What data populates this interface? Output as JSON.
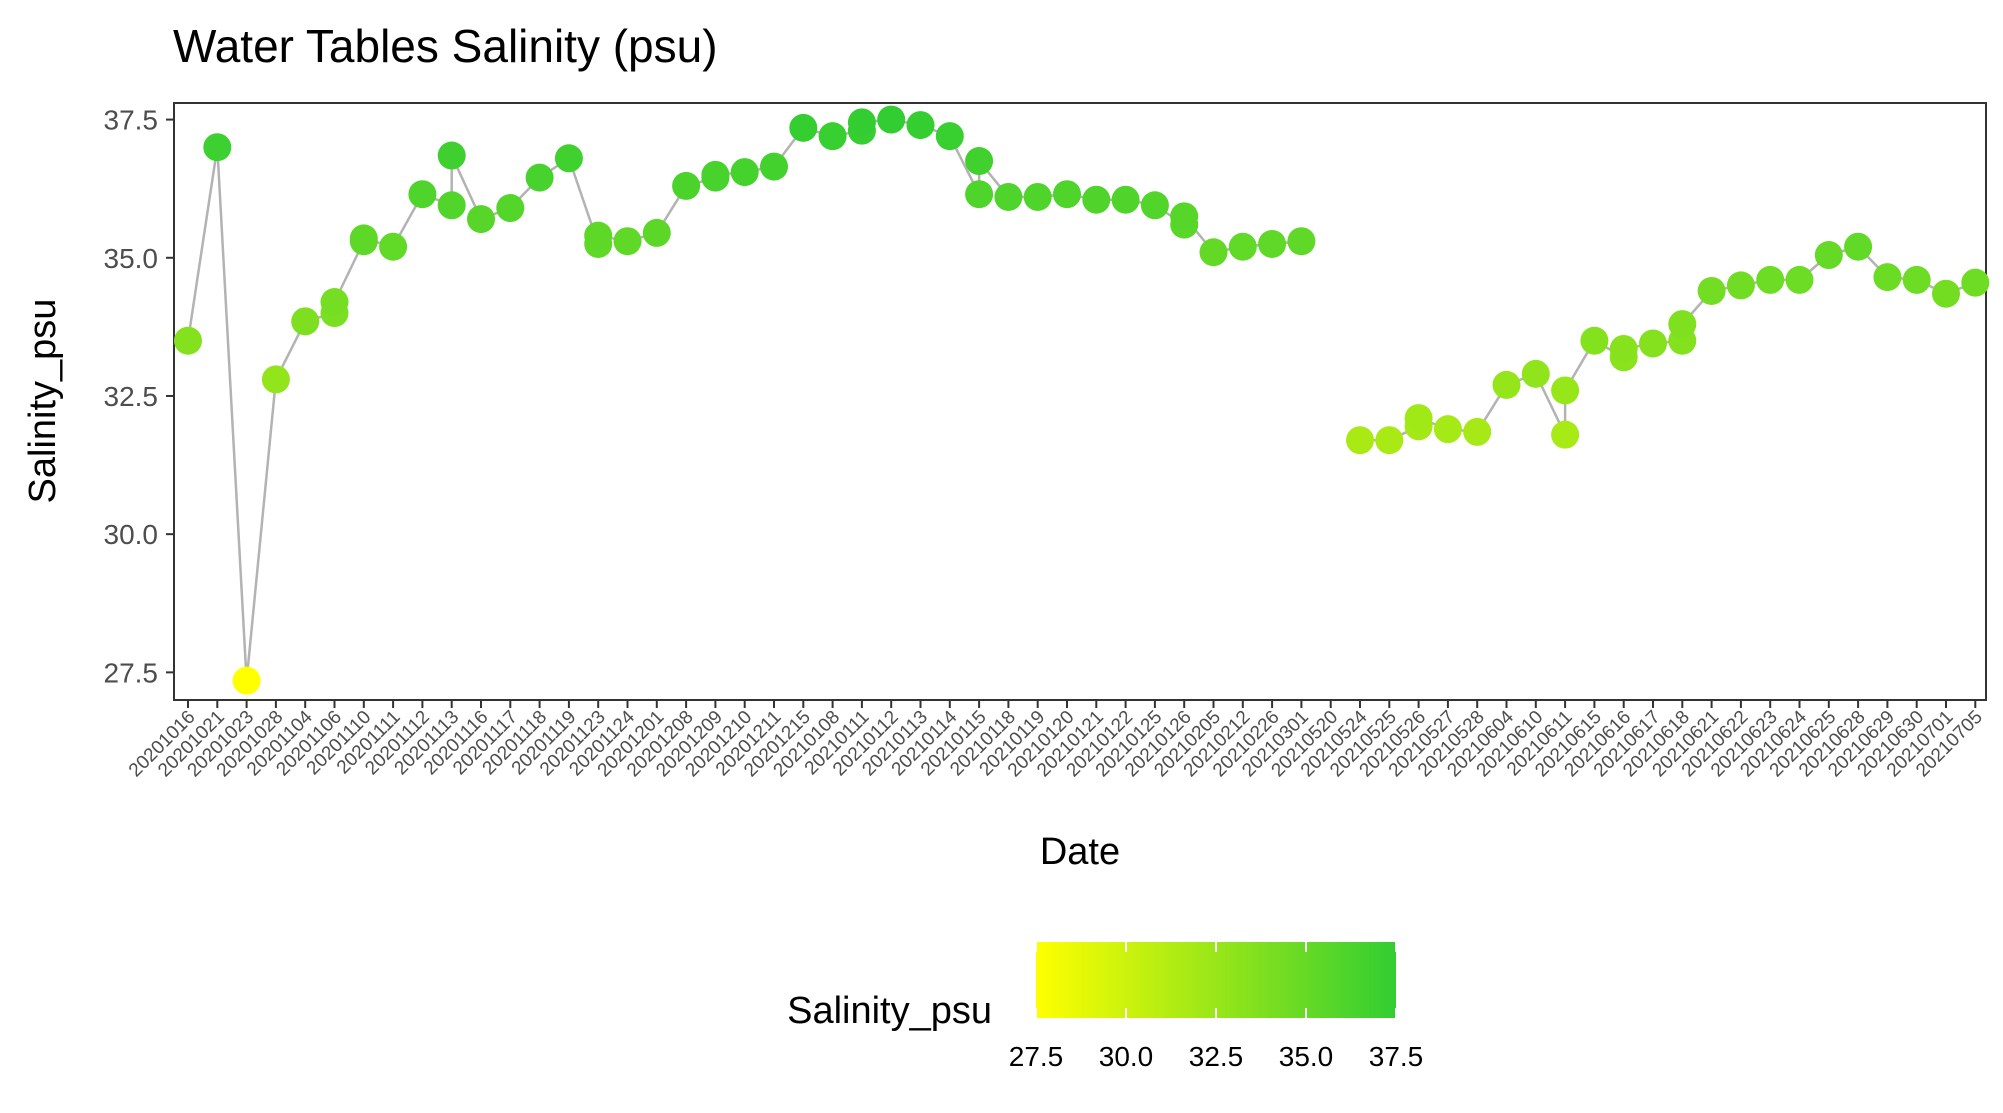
{
  "chart_data": {
    "type": "line",
    "title": "Water Tables Salinity (psu)",
    "xlabel": "Date",
    "ylabel": "Salinity_psu",
    "ylim": [
      27,
      37.8
    ],
    "yticks": [
      "27.5",
      "30.0",
      "32.5",
      "35.0",
      "37.5"
    ],
    "grid": false,
    "colors": {
      "low": "#ffff00",
      "high": "#32cd32",
      "line": "#b3b3b3",
      "axis": "#333333",
      "tick_text": "#4d4d4d"
    },
    "legend": {
      "title": "Salinity_psu",
      "position": "bottom",
      "range": [
        27.5,
        37.5
      ],
      "ticks": [
        "27.5",
        "30.0",
        "32.5",
        "35.0",
        "37.5"
      ]
    },
    "categories": [
      "20201016",
      "20201021",
      "20201023",
      "20201028",
      "20201104",
      "20201106",
      "20201110",
      "20201111",
      "20201112",
      "20201113",
      "20201116",
      "20201117",
      "20201118",
      "20201119",
      "20201123",
      "20201124",
      "20201201",
      "20201208",
      "20201209",
      "20201210",
      "20201211",
      "20201215",
      "20210108",
      "20210111",
      "20210112",
      "20210113",
      "20210114",
      "20210115",
      "20210118",
      "20210119",
      "20210120",
      "20210121",
      "20210122",
      "20210125",
      "20210126",
      "20210205",
      "20210212",
      "20210226",
      "20210301",
      "20210520",
      "20210524",
      "20210525",
      "20210526",
      "20210527",
      "20210528",
      "20210604",
      "20210610",
      "20210611",
      "20210615",
      "20210616",
      "20210617",
      "20210618",
      "20210621",
      "20210622",
      "20210623",
      "20210624",
      "20210625",
      "20210628",
      "20210629",
      "20210630",
      "20210701",
      "20210705"
    ],
    "series": [
      {
        "values": [
          [
            33.5
          ],
          [
            37.0
          ],
          [
            27.35
          ],
          [
            32.8
          ],
          [
            33.85
          ],
          [
            34.0,
            34.2
          ],
          [
            35.3,
            35.35
          ],
          [
            35.2
          ],
          [
            36.15
          ],
          [
            35.95,
            36.85
          ],
          [
            35.7
          ],
          [
            35.9
          ],
          [
            36.45
          ],
          [
            36.8
          ],
          [
            35.25,
            35.4
          ],
          [
            35.3
          ],
          [
            35.45
          ],
          [
            36.3
          ],
          [
            36.45,
            36.5
          ],
          [
            36.55
          ],
          [
            36.65
          ],
          [
            37.35
          ],
          [
            37.2
          ],
          [
            37.3,
            37.45
          ],
          [
            37.5
          ],
          [
            37.4
          ],
          [
            37.2
          ],
          [
            36.15,
            36.75
          ],
          [
            36.1
          ],
          [
            36.1
          ],
          [
            36.15
          ],
          [
            36.05
          ],
          [
            36.05
          ],
          [
            35.95
          ],
          [
            35.6,
            35.75
          ],
          [
            35.1
          ],
          [
            35.2
          ],
          [
            35.25
          ],
          [
            35.3
          ],
          [],
          [
            31.7
          ],
          [
            31.7
          ],
          [
            31.95,
            32.1
          ],
          [
            31.9
          ],
          [
            31.85
          ],
          [
            32.7
          ],
          [
            32.9
          ],
          [
            31.8,
            32.6
          ],
          [
            33.5
          ],
          [
            33.2,
            33.35
          ],
          [
            33.45
          ],
          [
            33.5,
            33.8
          ],
          [
            34.4
          ],
          [
            34.5
          ],
          [
            34.6
          ],
          [
            34.6
          ],
          [
            35.05
          ],
          [
            35.2
          ],
          [
            34.65
          ],
          [
            34.6
          ],
          [
            34.35
          ],
          [
            34.55
          ]
        ]
      }
    ]
  }
}
